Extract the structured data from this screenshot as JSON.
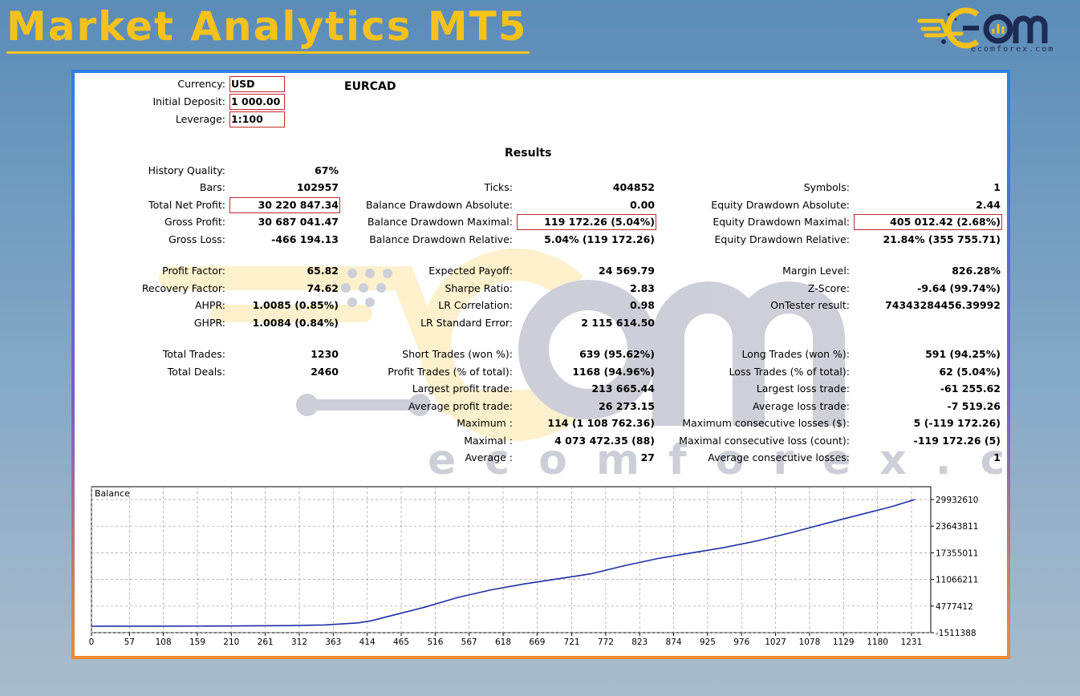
{
  "banner": {
    "title": "Market Analytics MT5"
  },
  "logo": {
    "wordmark": "EɃm",
    "url_text": "ecomforex.com",
    "color_yellow": "#f5c21b",
    "color_navy": "#1d2b52"
  },
  "watermark": {
    "text": "ecomforex.com"
  },
  "report": {
    "header": {
      "currency_label": "Currency:",
      "currency": "USD",
      "deposit_label": "Initial Deposit:",
      "deposit": "1 000.00",
      "leverage_label": "Leverage:",
      "leverage": "1:100",
      "symbol": "EURCAD"
    },
    "results_title": "Results",
    "col1": [
      {
        "label": "History Quality:",
        "value": "67%"
      },
      {
        "label": "Bars:",
        "value": "102957"
      },
      {
        "label": "Total Net Profit:",
        "value": "30 220 847.34"
      },
      {
        "label": "Gross Profit:",
        "value": "30 687 041.47"
      },
      {
        "label": "Gross Loss:",
        "value": "-466 194.13"
      },
      {
        "label": "Profit Factor:",
        "value": "65.82"
      },
      {
        "label": "Recovery Factor:",
        "value": "74.62"
      },
      {
        "label": "AHPR:",
        "value": "1.0085 (0.85%)"
      },
      {
        "label": "GHPR:",
        "value": "1.0084 (0.84%)"
      },
      {
        "label": "Total Trades:",
        "value": "1230"
      },
      {
        "label": "Total Deals:",
        "value": "2460"
      }
    ],
    "col2": [
      {
        "label": "Ticks:",
        "value": "404852"
      },
      {
        "label": "Balance Drawdown Absolute:",
        "value": "0.00"
      },
      {
        "label": "Balance Drawdown Maximal:",
        "value": "119 172.26 (5.04%)"
      },
      {
        "label": "Balance Drawdown Relative:",
        "value": "5.04% (119 172.26)"
      },
      {
        "label": "Expected Payoff:",
        "value": "24 569.79"
      },
      {
        "label": "Sharpe Ratio:",
        "value": "2.83"
      },
      {
        "label": "LR Correlation:",
        "value": "0.98"
      },
      {
        "label": "LR Standard Error:",
        "value": "2 115 614.50"
      },
      {
        "label": "Short Trades (won %):",
        "value": "639 (95.62%)"
      },
      {
        "label": "Profit Trades (% of total):",
        "value": "1168 (94.96%)"
      },
      {
        "label": "Largest profit trade:",
        "value": "213 665.44"
      },
      {
        "label": "Average profit trade:",
        "value": "26 273.15"
      },
      {
        "label": "Maximum :",
        "value": "114 (1 108 762.36)"
      },
      {
        "label": "Maximal :",
        "value": "4 073 472.35 (88)"
      },
      {
        "label": "Average :",
        "value": "27"
      }
    ],
    "col3": [
      {
        "label": "Symbols:",
        "value": "1"
      },
      {
        "label": "Equity Drawdown Absolute:",
        "value": "2.44"
      },
      {
        "label": "Equity Drawdown Maximal:",
        "value": "405 012.42 (2.68%)"
      },
      {
        "label": "Equity Drawdown Relative:",
        "value": "21.84% (355 755.71)"
      },
      {
        "label": "Margin Level:",
        "value": "826.28%"
      },
      {
        "label": "Z-Score:",
        "value": "-9.64 (99.74%)"
      },
      {
        "label": "OnTester result:",
        "value": "74343284456.39992"
      },
      {
        "label": "Long Trades (won %):",
        "value": "591 (94.25%)"
      },
      {
        "label": "Loss Trades (% of total):",
        "value": "62 (5.04%)"
      },
      {
        "label": "Largest loss trade:",
        "value": "-61 255.62"
      },
      {
        "label": "Average loss trade:",
        "value": "-7 519.26"
      },
      {
        "label": "Maximum consecutive losses ($):",
        "value": "5 (-119 172.26)"
      },
      {
        "label": "Maximal consecutive loss (count):",
        "value": "-119 172.26 (5)"
      },
      {
        "label": "Average consecutive losses:",
        "value": "1"
      }
    ]
  },
  "chart_data": {
    "type": "line",
    "title": "Balance",
    "line_color": "#1f2fa8",
    "x_ticks": [
      0,
      57,
      108,
      159,
      210,
      261,
      312,
      363,
      414,
      465,
      516,
      567,
      618,
      669,
      721,
      772,
      823,
      874,
      925,
      976,
      1027,
      1078,
      1129,
      1180,
      1231
    ],
    "y_ticks": [
      29932610,
      23643811,
      17355011,
      11066211,
      4777412,
      -1511388
    ],
    "xlim": [
      0,
      1260
    ],
    "ylim": [
      -1511388,
      29932610
    ],
    "grid": true,
    "series": [
      {
        "x": [
          0,
          100,
          200,
          300,
          350,
          400,
          420,
          450,
          500,
          550,
          600,
          650,
          700,
          750,
          800,
          850,
          900,
          950,
          1000,
          1050,
          1100,
          1150,
          1200,
          1236
        ],
        "y": [
          1000,
          20000,
          60000,
          150000,
          300000,
          800000,
          1300000,
          2500000,
          4500000,
          6800000,
          8600000,
          10000000,
          11200000,
          12400000,
          14300000,
          16000000,
          17300000,
          18600000,
          20200000,
          22100000,
          24200000,
          26200000,
          28200000,
          29932610
        ]
      }
    ]
  }
}
